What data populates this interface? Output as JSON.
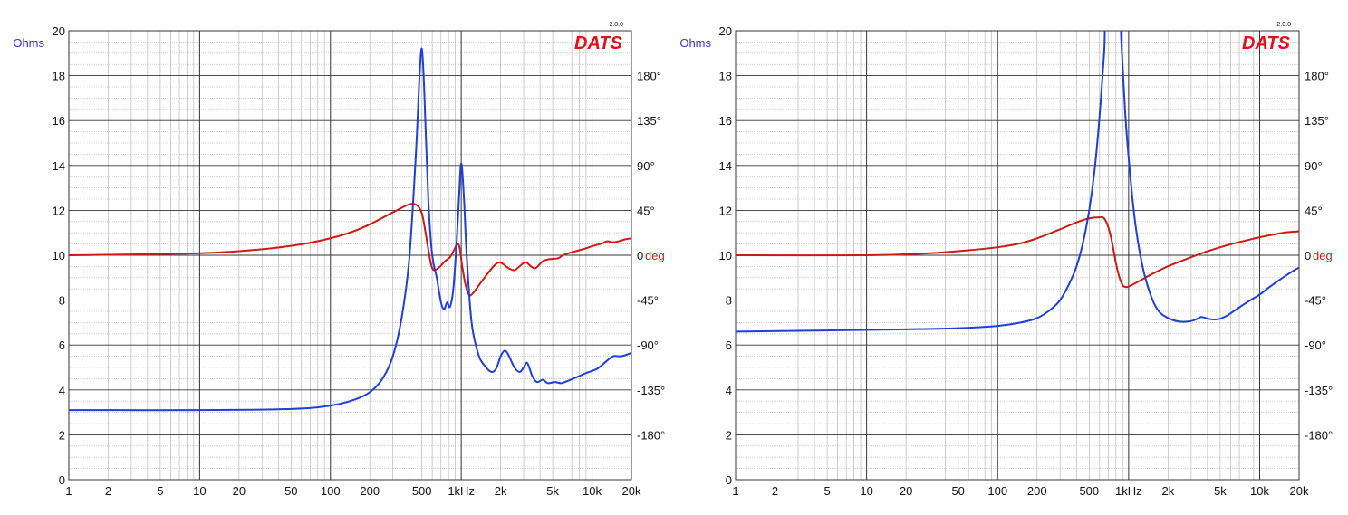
{
  "colors": {
    "impedance": "#1f3fd6",
    "phase": "#cc1a14",
    "ohms_label": "#3535c8",
    "deg_label": "#cc1a14",
    "logo": "#e0101a",
    "grid_major": "#333333",
    "grid_minor": "#b8b8b8",
    "text": "#111111"
  },
  "chart_data": [
    {
      "type": "line",
      "logo": "DATS",
      "logo_version": "2.0.0",
      "y_left_label": "Ohms",
      "y_right_label": "deg",
      "x_scale": "log",
      "xlim": [
        1,
        20000
      ],
      "ylim": [
        0,
        20
      ],
      "y2lim": [
        -225,
        225
      ],
      "x_tick_labels": [
        {
          "v": 1,
          "t": "1"
        },
        {
          "v": 2,
          "t": "2"
        },
        {
          "v": 5,
          "t": "5"
        },
        {
          "v": 10,
          "t": "10"
        },
        {
          "v": 20,
          "t": "20"
        },
        {
          "v": 50,
          "t": "50"
        },
        {
          "v": 100,
          "t": "100"
        },
        {
          "v": 200,
          "t": "200"
        },
        {
          "v": 500,
          "t": "500"
        },
        {
          "v": 1000,
          "t": "1kHz"
        },
        {
          "v": 2000,
          "t": "2k"
        },
        {
          "v": 5000,
          "t": "5k"
        },
        {
          "v": 10000,
          "t": "10k"
        },
        {
          "v": 20000,
          "t": "20k"
        }
      ],
      "y_tick_labels": [
        "0",
        "2",
        "4",
        "6",
        "8",
        "10",
        "12",
        "14",
        "16",
        "18",
        "20"
      ],
      "y2_tick_labels": [
        {
          "v": 180,
          "t": "180°"
        },
        {
          "v": 135,
          "t": "135°"
        },
        {
          "v": 90,
          "t": "90°"
        },
        {
          "v": 45,
          "t": "45°"
        },
        {
          "v": -45,
          "t": "-45°"
        },
        {
          "v": -90,
          "t": "-90°"
        },
        {
          "v": -135,
          "t": "-135°"
        },
        {
          "v": -180,
          "t": "-180°"
        }
      ],
      "series": [
        {
          "axis": "left",
          "color": "#1f3fd6",
          "points": [
            [
              1,
              3.1
            ],
            [
              10,
              3.1
            ],
            [
              50,
              3.15
            ],
            [
              100,
              3.3
            ],
            [
              150,
              3.55
            ],
            [
              200,
              3.9
            ],
            [
              250,
              4.5
            ],
            [
              300,
              5.5
            ],
            [
              350,
              7.2
            ],
            [
              400,
              9.8
            ],
            [
              450,
              14.5
            ],
            [
              480,
              18.0
            ],
            [
              500,
              19.2
            ],
            [
              520,
              17.5
            ],
            [
              560,
              12.5
            ],
            [
              600,
              10.0
            ],
            [
              650,
              9.0
            ],
            [
              700,
              7.9
            ],
            [
              740,
              7.6
            ],
            [
              780,
              7.9
            ],
            [
              820,
              7.7
            ],
            [
              870,
              8.5
            ],
            [
              920,
              10.5
            ],
            [
              960,
              12.5
            ],
            [
              1000,
              14.1
            ],
            [
              1050,
              12.5
            ],
            [
              1100,
              10.0
            ],
            [
              1200,
              7.0
            ],
            [
              1350,
              5.6
            ],
            [
              1500,
              5.1
            ],
            [
              1700,
              4.8
            ],
            [
              1850,
              4.95
            ],
            [
              2000,
              5.5
            ],
            [
              2150,
              5.75
            ],
            [
              2300,
              5.55
            ],
            [
              2550,
              5.0
            ],
            [
              2800,
              4.8
            ],
            [
              3000,
              5.0
            ],
            [
              3200,
              5.2
            ],
            [
              3500,
              4.6
            ],
            [
              3800,
              4.35
            ],
            [
              4200,
              4.45
            ],
            [
              4600,
              4.3
            ],
            [
              5200,
              4.35
            ],
            [
              5800,
              4.3
            ],
            [
              6500,
              4.4
            ],
            [
              7500,
              4.55
            ],
            [
              9000,
              4.75
            ],
            [
              11000,
              4.95
            ],
            [
              13000,
              5.3
            ],
            [
              14500,
              5.5
            ],
            [
              16500,
              5.5
            ],
            [
              18000,
              5.55
            ],
            [
              20000,
              5.65
            ]
          ]
        },
        {
          "axis": "right",
          "color": "#cc1a14",
          "points": [
            [
              1,
              0
            ],
            [
              10,
              2
            ],
            [
              30,
              6
            ],
            [
              60,
              11
            ],
            [
              100,
              17
            ],
            [
              150,
              24
            ],
            [
              200,
              31
            ],
            [
              300,
              43
            ],
            [
              400,
              51
            ],
            [
              460,
              50
            ],
            [
              500,
              42
            ],
            [
              530,
              25
            ],
            [
              560,
              6
            ],
            [
              590,
              -10
            ],
            [
              620,
              -15
            ],
            [
              680,
              -12
            ],
            [
              750,
              -6
            ],
            [
              820,
              -2
            ],
            [
              880,
              5
            ],
            [
              930,
              11
            ],
            [
              970,
              8
            ],
            [
              1020,
              -12
            ],
            [
              1080,
              -30
            ],
            [
              1150,
              -40
            ],
            [
              1250,
              -37
            ],
            [
              1400,
              -28
            ],
            [
              1600,
              -18
            ],
            [
              1800,
              -10
            ],
            [
              1950,
              -7
            ],
            [
              2100,
              -9
            ],
            [
              2300,
              -13
            ],
            [
              2550,
              -15
            ],
            [
              2800,
              -11
            ],
            [
              3100,
              -7
            ],
            [
              3400,
              -11
            ],
            [
              3700,
              -13
            ],
            [
              4200,
              -6
            ],
            [
              4700,
              -4
            ],
            [
              5500,
              -3
            ],
            [
              6000,
              0
            ],
            [
              7000,
              3
            ],
            [
              8500,
              6
            ],
            [
              10000,
              9
            ],
            [
              12000,
              12
            ],
            [
              13000,
              14
            ],
            [
              14500,
              13
            ],
            [
              16000,
              14
            ],
            [
              18000,
              16
            ],
            [
              20000,
              17
            ]
          ]
        }
      ]
    },
    {
      "type": "line",
      "logo": "DATS",
      "logo_version": "2.0.0",
      "y_left_label": "Ohms",
      "y_right_label": "deg",
      "x_scale": "log",
      "xlim": [
        1,
        20000
      ],
      "ylim": [
        0,
        20
      ],
      "y2lim": [
        -225,
        225
      ],
      "x_tick_labels": [
        {
          "v": 1,
          "t": "1"
        },
        {
          "v": 2,
          "t": "2"
        },
        {
          "v": 5,
          "t": "5"
        },
        {
          "v": 10,
          "t": "10"
        },
        {
          "v": 20,
          "t": "20"
        },
        {
          "v": 50,
          "t": "50"
        },
        {
          "v": 100,
          "t": "100"
        },
        {
          "v": 200,
          "t": "200"
        },
        {
          "v": 500,
          "t": "500"
        },
        {
          "v": 1000,
          "t": "1kHz"
        },
        {
          "v": 2000,
          "t": "2k"
        },
        {
          "v": 5000,
          "t": "5k"
        },
        {
          "v": 10000,
          "t": "10k"
        },
        {
          "v": 20000,
          "t": "20k"
        }
      ],
      "y_tick_labels": [
        "0",
        "2",
        "4",
        "6",
        "8",
        "10",
        "12",
        "14",
        "16",
        "18",
        "20"
      ],
      "y2_tick_labels": [
        {
          "v": 180,
          "t": "180°"
        },
        {
          "v": 135,
          "t": "135°"
        },
        {
          "v": 90,
          "t": "90°"
        },
        {
          "v": 45,
          "t": "45°"
        },
        {
          "v": -45,
          "t": "-45°"
        },
        {
          "v": -90,
          "t": "-90°"
        },
        {
          "v": -135,
          "t": "-135°"
        },
        {
          "v": -180,
          "t": "-180°"
        }
      ],
      "series": [
        {
          "axis": "left",
          "color": "#1f3fd6",
          "points": [
            [
              1,
              6.6
            ],
            [
              5,
              6.65
            ],
            [
              20,
              6.7
            ],
            [
              50,
              6.75
            ],
            [
              100,
              6.85
            ],
            [
              150,
              7.0
            ],
            [
              200,
              7.2
            ],
            [
              250,
              7.55
            ],
            [
              300,
              8.0
            ],
            [
              350,
              8.7
            ],
            [
              400,
              9.5
            ],
            [
              450,
              10.6
            ],
            [
              500,
              12.0
            ],
            [
              550,
              13.8
            ],
            [
              600,
              16.2
            ],
            [
              650,
              19.0
            ],
            [
              680,
              21.0
            ],
            [
              850,
              21.0
            ],
            [
              880,
              19.5
            ],
            [
              950,
              16.0
            ],
            [
              1050,
              13.0
            ],
            [
              1150,
              11.0
            ],
            [
              1300,
              9.3
            ],
            [
              1500,
              8.1
            ],
            [
              1700,
              7.5
            ],
            [
              2000,
              7.2
            ],
            [
              2400,
              7.05
            ],
            [
              2900,
              7.05
            ],
            [
              3300,
              7.15
            ],
            [
              3600,
              7.25
            ],
            [
              4200,
              7.15
            ],
            [
              4800,
              7.15
            ],
            [
              5600,
              7.3
            ],
            [
              6500,
              7.55
            ],
            [
              8000,
              7.9
            ],
            [
              10000,
              8.25
            ],
            [
              12000,
              8.6
            ],
            [
              15000,
              9.0
            ],
            [
              18000,
              9.3
            ],
            [
              20000,
              9.45
            ]
          ]
        },
        {
          "axis": "right",
          "color": "#cc1a14",
          "points": [
            [
              1,
              0
            ],
            [
              10,
              0
            ],
            [
              30,
              2
            ],
            [
              60,
              5
            ],
            [
              100,
              8
            ],
            [
              150,
              12
            ],
            [
              200,
              17
            ],
            [
              300,
              26
            ],
            [
              400,
              33
            ],
            [
              500,
              37
            ],
            [
              600,
              38
            ],
            [
              650,
              37
            ],
            [
              700,
              28
            ],
            [
              750,
              12
            ],
            [
              800,
              -8
            ],
            [
              850,
              -22
            ],
            [
              900,
              -30
            ],
            [
              960,
              -32
            ],
            [
              1050,
              -30
            ],
            [
              1200,
              -26
            ],
            [
              1500,
              -19
            ],
            [
              2000,
              -11
            ],
            [
              2500,
              -6
            ],
            [
              3000,
              -2
            ],
            [
              4000,
              4
            ],
            [
              5000,
              8
            ],
            [
              6000,
              11
            ],
            [
              8000,
              15
            ],
            [
              10000,
              18
            ],
            [
              13000,
              21
            ],
            [
              16000,
              23
            ],
            [
              20000,
              24
            ]
          ]
        }
      ]
    }
  ]
}
